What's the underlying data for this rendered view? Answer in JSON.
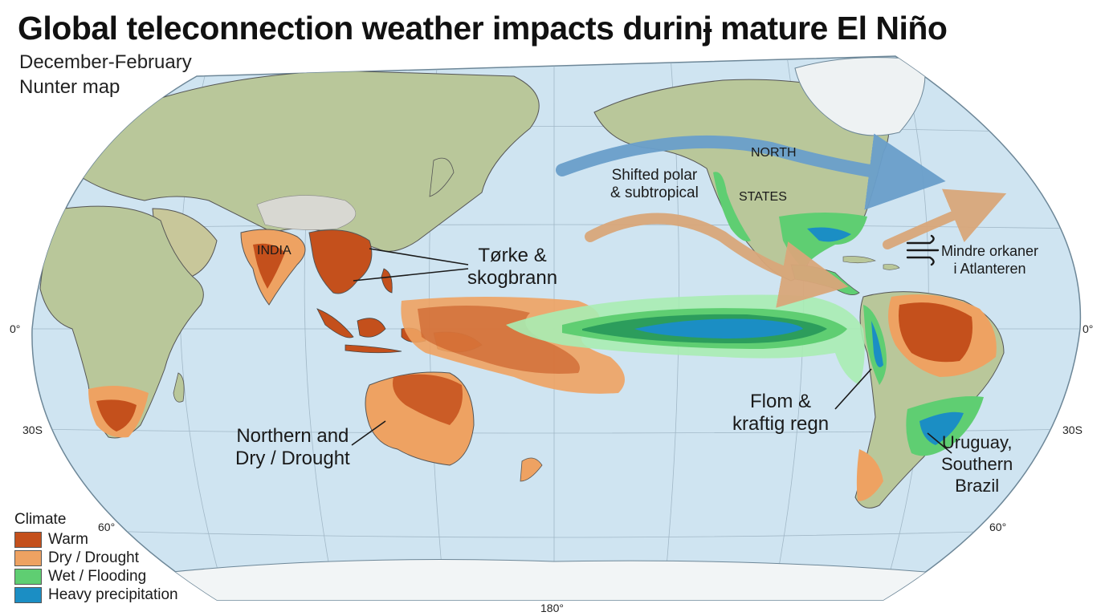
{
  "title": "Global teleconnection weather impacts durinɉ mature El Niño",
  "subtitle_lines": [
    "December-February",
    "Nunter map"
  ],
  "labels": {
    "india": "INDIA",
    "north": "NORTH",
    "states": "STATES",
    "jet_stream": [
      "Shifted polar",
      "& subtropical"
    ],
    "drought_fire": [
      "Tørke &",
      "skogbrann"
    ],
    "australia": [
      "Northern and",
      "Dry / Drought"
    ],
    "flood_rain": [
      "Flom &",
      "kraftig regn"
    ],
    "uruguay": [
      "Uruguay,",
      "Southern",
      "Brazil"
    ],
    "hurricanes": [
      "Mindre orkaner",
      "i Atlanteren"
    ]
  },
  "grid_labels": {
    "equator_left": "0°",
    "equator_right": "0°",
    "lat30_left": "30S",
    "lat30_right": "30S",
    "lat60_left": "60°",
    "lat60_right": "60°",
    "meridian_180": "180°"
  },
  "legend": {
    "title": "Climate",
    "items": [
      {
        "label": "Warm",
        "color": "#c4501c"
      },
      {
        "label": "Dry / Drought",
        "color": "#eea262"
      },
      {
        "label": "Wet / Flooding",
        "color": "#5fce72"
      },
      {
        "label": "Heavy precipitation",
        "color": "#1b8ec4"
      }
    ]
  },
  "colors": {
    "ocean": "#cfe4f1",
    "land": "#b9c79a",
    "warm": "#c4501c",
    "dry": "#eea262",
    "wet": "#5fce72",
    "heavy": "#1b8ec4",
    "jet_arrow": "#6a9fcb",
    "sub_arrow": "#d9a77a"
  }
}
